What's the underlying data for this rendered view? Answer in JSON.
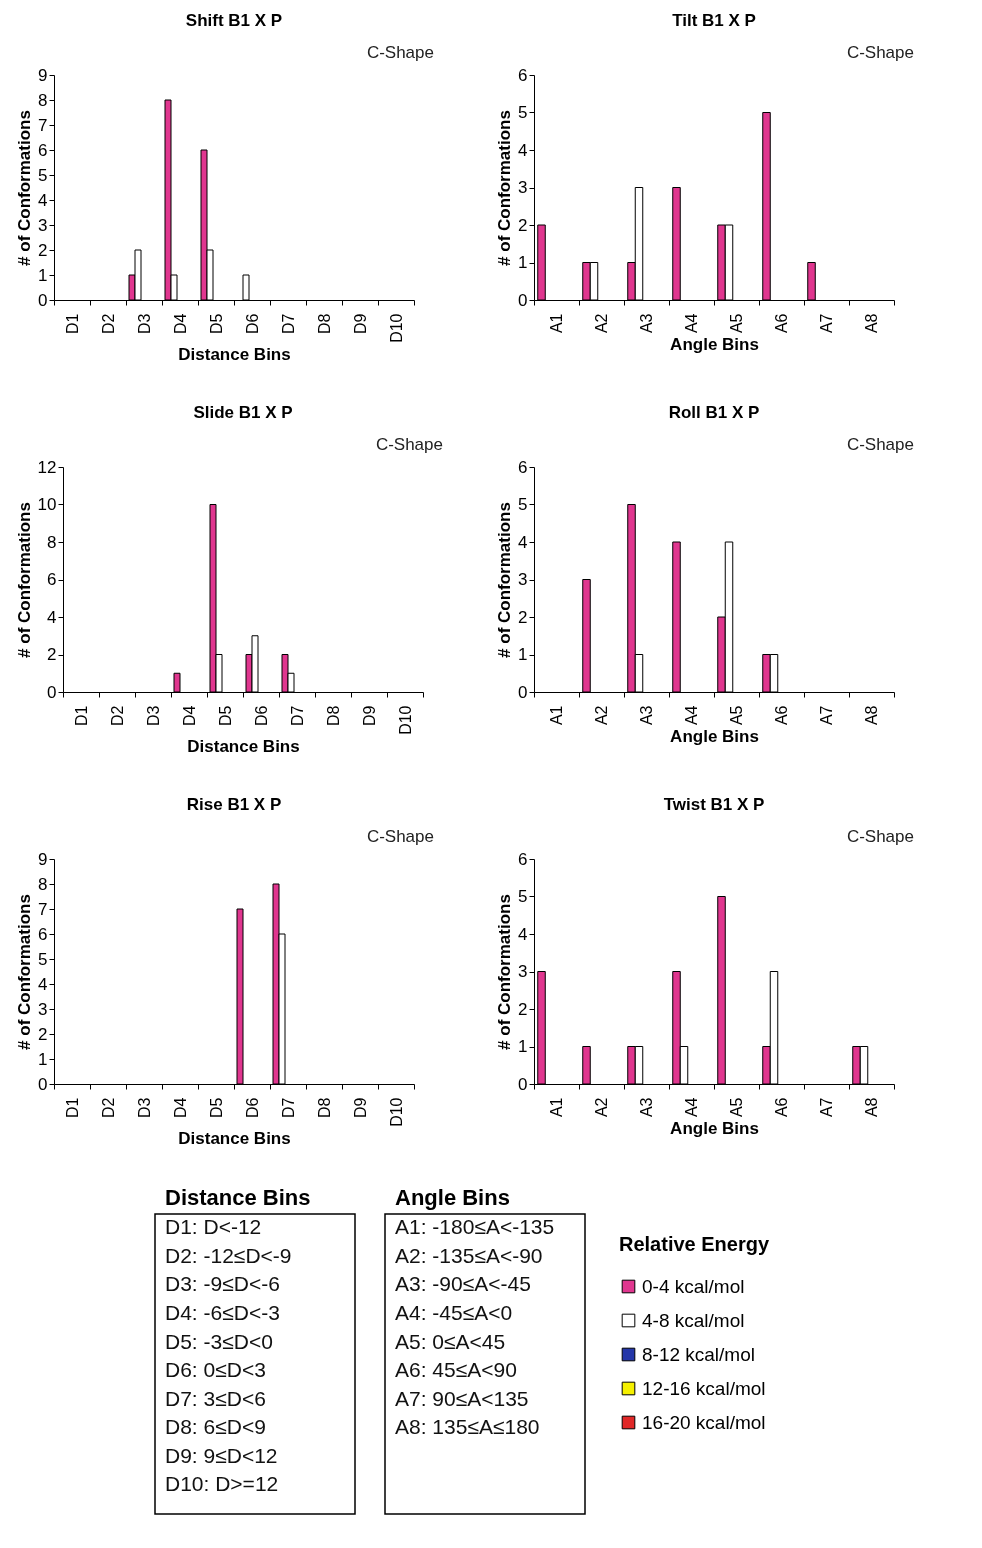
{
  "chart_data": [
    {
      "type": "bar",
      "title": "Shift B1 X P",
      "subtitle": "C-Shape",
      "xlabel": "Distance Bins",
      "ylabel": "# of Conformations",
      "categories": [
        "D1",
        "D2",
        "D3",
        "D4",
        "D5",
        "D6",
        "D7",
        "D8",
        "D9",
        "D10"
      ],
      "ylim": [
        0,
        9
      ],
      "yticks": [
        0,
        1,
        2,
        3,
        4,
        5,
        6,
        7,
        8,
        9
      ],
      "legend": "bottom right",
      "legend_title": "Relative Energy",
      "series": [
        {
          "name": "0-4 kcal/mol",
          "color": "#e0368f",
          "values": [
            0,
            0,
            1,
            8,
            6,
            0,
            0,
            0,
            0,
            0
          ]
        },
        {
          "name": "4-8 kcal/mol",
          "color": "#ffffff",
          "values": [
            0,
            0,
            2,
            1,
            2,
            1,
            0,
            0,
            0,
            0
          ]
        },
        {
          "name": "8-12 kcal/mol",
          "color": "#2436a8",
          "values": [
            0,
            0,
            0,
            0,
            0,
            0,
            0,
            0,
            0,
            0
          ]
        },
        {
          "name": "12-16 kcal/mol",
          "color": "#f5f000",
          "values": [
            0,
            0,
            0,
            0,
            0,
            0,
            0,
            0,
            0,
            0
          ]
        },
        {
          "name": "16-20 kcal/mol",
          "color": "#e02828",
          "values": [
            0,
            0,
            0,
            0,
            0,
            0,
            0,
            0,
            0,
            0
          ]
        }
      ]
    },
    {
      "type": "bar",
      "title": "Tilt B1 X P",
      "subtitle": "C-Shape",
      "xlabel": "Angle Bins",
      "ylabel": "# of Conformations",
      "categories": [
        "A1",
        "A2",
        "A3",
        "A4",
        "A5",
        "A6",
        "A7",
        "A8"
      ],
      "ylim": [
        0,
        6
      ],
      "yticks": [
        0,
        1,
        2,
        3,
        4,
        5,
        6
      ],
      "series": [
        {
          "color": "#e0368f",
          "values": [
            2,
            1,
            1,
            3,
            2,
            5,
            1,
            0
          ]
        },
        {
          "color": "#ffffff",
          "values": [
            0,
            1,
            3,
            0,
            2,
            0,
            0,
            0
          ]
        },
        {
          "color": "#2436a8",
          "values": [
            0,
            0,
            0,
            0,
            0,
            0,
            0,
            0
          ]
        },
        {
          "color": "#f5f000",
          "values": [
            0,
            0,
            0,
            0,
            0,
            0,
            0,
            0
          ]
        },
        {
          "color": "#e02828",
          "values": [
            0,
            0,
            0,
            0,
            0,
            0,
            0,
            0
          ]
        }
      ]
    },
    {
      "type": "bar",
      "title": "Slide B1 X P",
      "subtitle": "C-Shape",
      "xlabel": "Distance Bins",
      "ylabel": "# of Conformations",
      "categories": [
        "D1",
        "D2",
        "D3",
        "D4",
        "D5",
        "D6",
        "D7",
        "D8",
        "D9",
        "D10"
      ],
      "ylim": [
        0,
        12
      ],
      "yticks": [
        0,
        2,
        4,
        6,
        8,
        10,
        12
      ],
      "series": [
        {
          "color": "#e0368f",
          "values": [
            0,
            0,
            0,
            1,
            10,
            2,
            2,
            0,
            0,
            0
          ]
        },
        {
          "color": "#ffffff",
          "values": [
            0,
            0,
            0,
            0,
            2,
            3,
            1,
            0,
            0,
            0
          ]
        },
        {
          "color": "#2436a8",
          "values": [
            0,
            0,
            0,
            0,
            0,
            0,
            0,
            0,
            0,
            0
          ]
        },
        {
          "color": "#f5f000",
          "values": [
            0,
            0,
            0,
            0,
            0,
            0,
            0,
            0,
            0,
            0
          ]
        },
        {
          "color": "#e02828",
          "values": [
            0,
            0,
            0,
            0,
            0,
            0,
            0,
            0,
            0,
            0
          ]
        }
      ]
    },
    {
      "type": "bar",
      "title": "Roll B1 X P",
      "subtitle": "C-Shape",
      "xlabel": "Angle Bins",
      "ylabel": "# of Conformations",
      "categories": [
        "A1",
        "A2",
        "A3",
        "A4",
        "A5",
        "A6",
        "A7",
        "A8"
      ],
      "ylim": [
        0,
        6
      ],
      "yticks": [
        0,
        1,
        2,
        3,
        4,
        5,
        6
      ],
      "series": [
        {
          "color": "#e0368f",
          "values": [
            0,
            3,
            5,
            4,
            2,
            1,
            0,
            0
          ]
        },
        {
          "color": "#ffffff",
          "values": [
            0,
            0,
            1,
            0,
            4,
            1,
            0,
            0
          ]
        },
        {
          "color": "#2436a8",
          "values": [
            0,
            0,
            0,
            0,
            0,
            0,
            0,
            0
          ]
        },
        {
          "color": "#f5f000",
          "values": [
            0,
            0,
            0,
            0,
            0,
            0,
            0,
            0
          ]
        },
        {
          "color": "#e02828",
          "values": [
            0,
            0,
            0,
            0,
            0,
            0,
            0,
            0
          ]
        }
      ]
    },
    {
      "type": "bar",
      "title": "Rise B1 X P",
      "subtitle": "C-Shape",
      "xlabel": "Distance Bins",
      "ylabel": "# of Conformations",
      "categories": [
        "D1",
        "D2",
        "D3",
        "D4",
        "D5",
        "D6",
        "D7",
        "D8",
        "D9",
        "D10"
      ],
      "ylim": [
        0,
        9
      ],
      "yticks": [
        0,
        1,
        2,
        3,
        4,
        5,
        6,
        7,
        8,
        9
      ],
      "series": [
        {
          "color": "#e0368f",
          "values": [
            0,
            0,
            0,
            0,
            0,
            7,
            8,
            0,
            0,
            0
          ]
        },
        {
          "color": "#ffffff",
          "values": [
            0,
            0,
            0,
            0,
            0,
            0,
            6,
            0,
            0,
            0
          ]
        },
        {
          "color": "#2436a8",
          "values": [
            0,
            0,
            0,
            0,
            0,
            0,
            0,
            0,
            0,
            0
          ]
        },
        {
          "color": "#f5f000",
          "values": [
            0,
            0,
            0,
            0,
            0,
            0,
            0,
            0,
            0,
            0
          ]
        },
        {
          "color": "#e02828",
          "values": [
            0,
            0,
            0,
            0,
            0,
            0,
            0,
            0,
            0,
            0
          ]
        }
      ]
    },
    {
      "type": "bar",
      "title": "Twist B1 X P",
      "subtitle": "C-Shape",
      "xlabel": "Angle Bins",
      "ylabel": "# of Conformations",
      "categories": [
        "A1",
        "A2",
        "A3",
        "A4",
        "A5",
        "A6",
        "A7",
        "A8"
      ],
      "ylim": [
        0,
        6
      ],
      "yticks": [
        0,
        1,
        2,
        3,
        4,
        5,
        6
      ],
      "series": [
        {
          "color": "#e0368f",
          "values": [
            3,
            1,
            1,
            3,
            5,
            1,
            0,
            1
          ]
        },
        {
          "color": "#ffffff",
          "values": [
            0,
            0,
            1,
            1,
            0,
            3,
            0,
            1
          ]
        },
        {
          "color": "#2436a8",
          "values": [
            0,
            0,
            0,
            0,
            0,
            0,
            0,
            0
          ]
        },
        {
          "color": "#f5f000",
          "values": [
            0,
            0,
            0,
            0,
            0,
            0,
            0,
            0
          ]
        },
        {
          "color": "#e02828",
          "values": [
            0,
            0,
            0,
            0,
            0,
            0,
            0,
            0
          ]
        }
      ]
    },
    {
      "type": "other",
      "title": "Distance Bins",
      "annotations": [
        "D1:  D<-12",
        "D2: -12≤D<-9",
        "D3: -9≤D<-6",
        "D4: -6≤D<-3",
        "D5: -3≤D<0",
        "D6:  0≤D<3",
        "D7:  3≤D<6",
        "D8:  6≤D<9",
        "D9:  9≤D<12",
        "D10: D>=12"
      ]
    },
    {
      "type": "other",
      "title": "Angle Bins",
      "annotations": [
        "A1: -180≤A<-135",
        "A2: -135≤A<-90",
        "A3: -90≤A<-45",
        "A4: -45≤A<0",
        "A5: 0≤A<45",
        "A6: 45≤A<90",
        "A7: 90≤A<135",
        "A8: 135≤A≤180"
      ]
    }
  ]
}
